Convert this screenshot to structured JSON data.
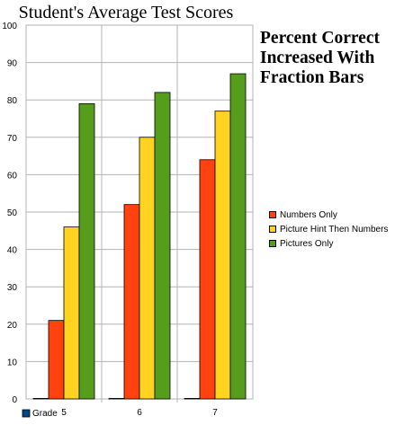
{
  "chart_data": {
    "type": "bar",
    "title": "Student's Average Test Scores",
    "annotation": "Percent Correct\nIncreased With\nFraction Bars",
    "xlabel": "Grade",
    "ylabel": "",
    "categories": [
      "5",
      "6",
      "7"
    ],
    "ylim": [
      0,
      100
    ],
    "yticks": [
      0,
      10,
      20,
      30,
      40,
      50,
      60,
      70,
      80,
      90,
      100
    ],
    "grid": true,
    "legend_position": "right",
    "series": [
      {
        "name": "Grade",
        "values": [
          0,
          0,
          0
        ],
        "color": "#004586"
      },
      {
        "name": "Numbers Only",
        "values": [
          21,
          52,
          64
        ],
        "color": "#ff420e"
      },
      {
        "name": "Picture Hint Then Numbers",
        "values": [
          46,
          70,
          77
        ],
        "color": "#ffd320"
      },
      {
        "name": "Pictures Only",
        "values": [
          79,
          82,
          87
        ],
        "color": "#579d1c"
      }
    ]
  }
}
